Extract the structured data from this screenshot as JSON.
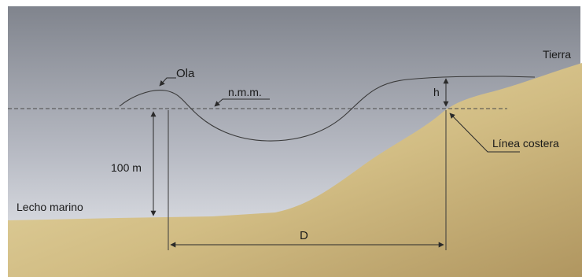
{
  "labels": {
    "wave": "Ola",
    "mean_sea_level": "n.m.m.",
    "land": "Tierra",
    "height": "h",
    "coastline": "Línea costera",
    "depth": "100 m",
    "seabed": "Lecho marino",
    "distance": "D"
  },
  "colors": {
    "sky_top": "#80848d",
    "sky_bottom": "#e9eaef",
    "sand_light": "#e6d7a4",
    "sand_dark": "#b59c63",
    "line": "#3a3a3a"
  }
}
